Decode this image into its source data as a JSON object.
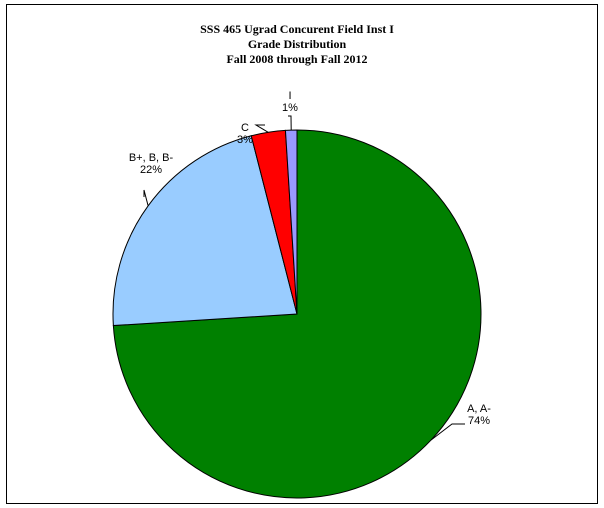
{
  "chart_data": {
    "type": "pie",
    "title_lines": [
      "SSS 465 Ugrad Concurent Field Inst I",
      "Grade Distribution",
      "Fall 2008 through Fall 2012"
    ],
    "slices": [
      {
        "category": "A, A-",
        "value": 74,
        "label": "74%",
        "color": "#008000"
      },
      {
        "category": "B+, B, B-",
        "value": 22,
        "label": "22%",
        "color": "#99ccff"
      },
      {
        "category": "C",
        "value": 3,
        "label": "3%",
        "color": "#ff0000"
      },
      {
        "category": "I",
        "value": 1,
        "label": "1%",
        "color": "#9999ff"
      }
    ],
    "start_angle": "12 o'clock",
    "direction": "clockwise",
    "legend": "none"
  }
}
